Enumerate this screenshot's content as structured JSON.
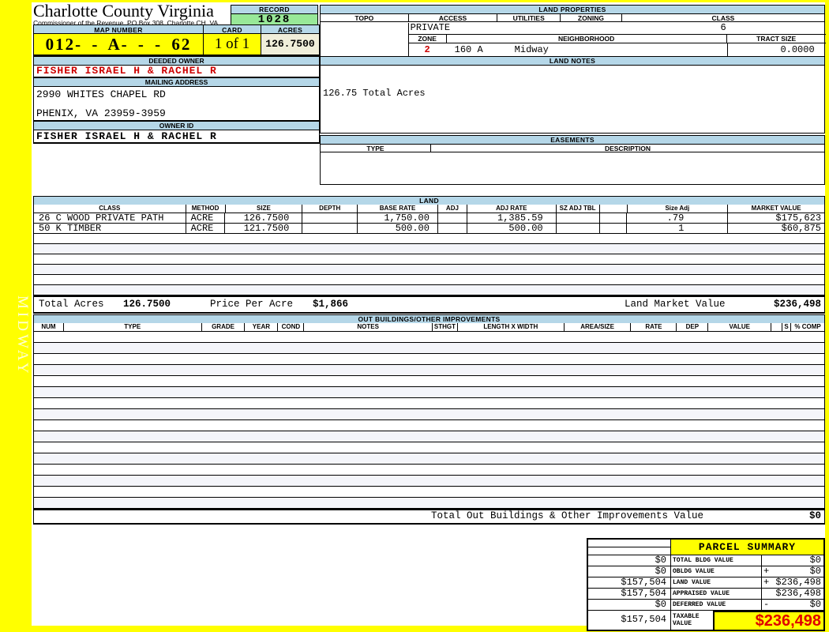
{
  "frame": {
    "sidebar_label": "MIDWAY"
  },
  "header": {
    "county_title": "Charlotte County Virginia",
    "commissioner_line": "Commissioner of the Revenue, PO Box 308, Charlotte CH, VA",
    "record_label": "RECORD",
    "record_value": "1028",
    "map_number_label": "MAP NUMBER",
    "map_number_value": "012- - A- - - 62",
    "card_label": "CARD",
    "card_value": "1 of 1",
    "acres_label": "ACRES",
    "acres_value": "126.7500"
  },
  "owner": {
    "deeded_owner_label": "DEEDED OWNER",
    "deeded_owner": "FISHER ISRAEL H & RACHEL R",
    "mailing_address_label": "MAILING ADDRESS",
    "address_line1": "2990 WHITES CHAPEL RD",
    "address_line2": "PHENIX, VA 23959-3959",
    "owner_id_label": "OWNER ID",
    "owner_id": "FISHER ISRAEL H & RACHEL R"
  },
  "land_properties": {
    "title": "LAND PROPERTIES",
    "headers": [
      "TOPO",
      "ACCESS",
      "UTILITIES",
      "ZONING",
      "CLASS"
    ],
    "access_value": "PRIVATE",
    "class_value": "6",
    "zone_label": "ZONE",
    "zone_value": "2",
    "neighborhood_label": "NEIGHBORHOOD",
    "neighborhood_code": "160 A",
    "neighborhood_name": "Midway",
    "tract_size_label": "TRACT SIZE",
    "tract_size_value": "0.0000"
  },
  "land_notes": {
    "title": "LAND NOTES",
    "note": "126.75 Total Acres"
  },
  "easements": {
    "title": "EASEMENTS",
    "type_label": "TYPE",
    "description_label": "DESCRIPTION"
  },
  "land_table": {
    "title": "LAND",
    "columns": [
      "CLASS",
      "METHOD",
      "SIZE",
      "DEPTH",
      "BASE RATE",
      "ADJ",
      "ADJ RATE",
      "SZ ADJ TBL",
      "",
      "Size Adj",
      "MARKET VALUE"
    ],
    "rows": [
      {
        "cells": [
          "26 C WOOD PRIVATE PATH",
          "ACRE",
          "126.7500",
          "",
          "1,750.00",
          "",
          "1,385.59",
          "",
          "",
          ".79",
          "$175,623"
        ]
      },
      {
        "cells": [
          "50 K TIMBER",
          "ACRE",
          "121.7500",
          "",
          "500.00",
          "",
          "500.00",
          "",
          "",
          "1",
          "$60,875"
        ]
      }
    ],
    "empty_row_count": 6,
    "totals": {
      "total_acres_label": "Total Acres",
      "total_acres": "126.7500",
      "price_per_acre_label": "Price Per Acre",
      "price_per_acre": "$1,866",
      "land_market_value_label": "Land Market Value",
      "land_market_value": "$236,498"
    }
  },
  "out_buildings": {
    "title": "OUT BUILDINGS/OTHER IMPROVEMENTS",
    "columns": [
      "NUM",
      "TYPE",
      "GRADE",
      "YEAR",
      "COND",
      "NOTES",
      "STHGT",
      "LENGTH X WIDTH",
      "AREA/SIZE",
      "RATE",
      "DEP",
      "VALUE",
      "",
      "S",
      "% COMP"
    ],
    "empty_row_count": 16,
    "total_label": "Total Out Buildings & Other Improvements Value",
    "total_value": "$0"
  },
  "parcel_summary": {
    "title": "PARCEL SUMMARY",
    "rows": [
      {
        "left": "$0",
        "label": "TOTAL BLDG VALUE",
        "op": "",
        "value": "$0"
      },
      {
        "left": "$0",
        "label": "OBLDG VALUE",
        "op": "+",
        "value": "$0"
      },
      {
        "left": "$157,504",
        "label": "LAND VALUE",
        "op": "+",
        "value": "$236,498"
      },
      {
        "left": "$157,504",
        "label": "APPRAISED VALUE",
        "op": "",
        "value": "$236,498"
      },
      {
        "left": "$0",
        "label": "DEFERRED VALUE",
        "op": "-",
        "value": "$0"
      }
    ],
    "taxable": {
      "left": "$157,504",
      "label": "TAXABLE VALUE",
      "value": "$236,498"
    }
  },
  "colors": {
    "frame_yellow": "#FFFF00",
    "header_blue": "#B5D7E8",
    "record_green": "#98E898",
    "acres_beige": "#F0EEDA",
    "owner_red": "#CC0000",
    "taxable_red": "#DF0000",
    "alt_row": "#F4F5FA"
  }
}
